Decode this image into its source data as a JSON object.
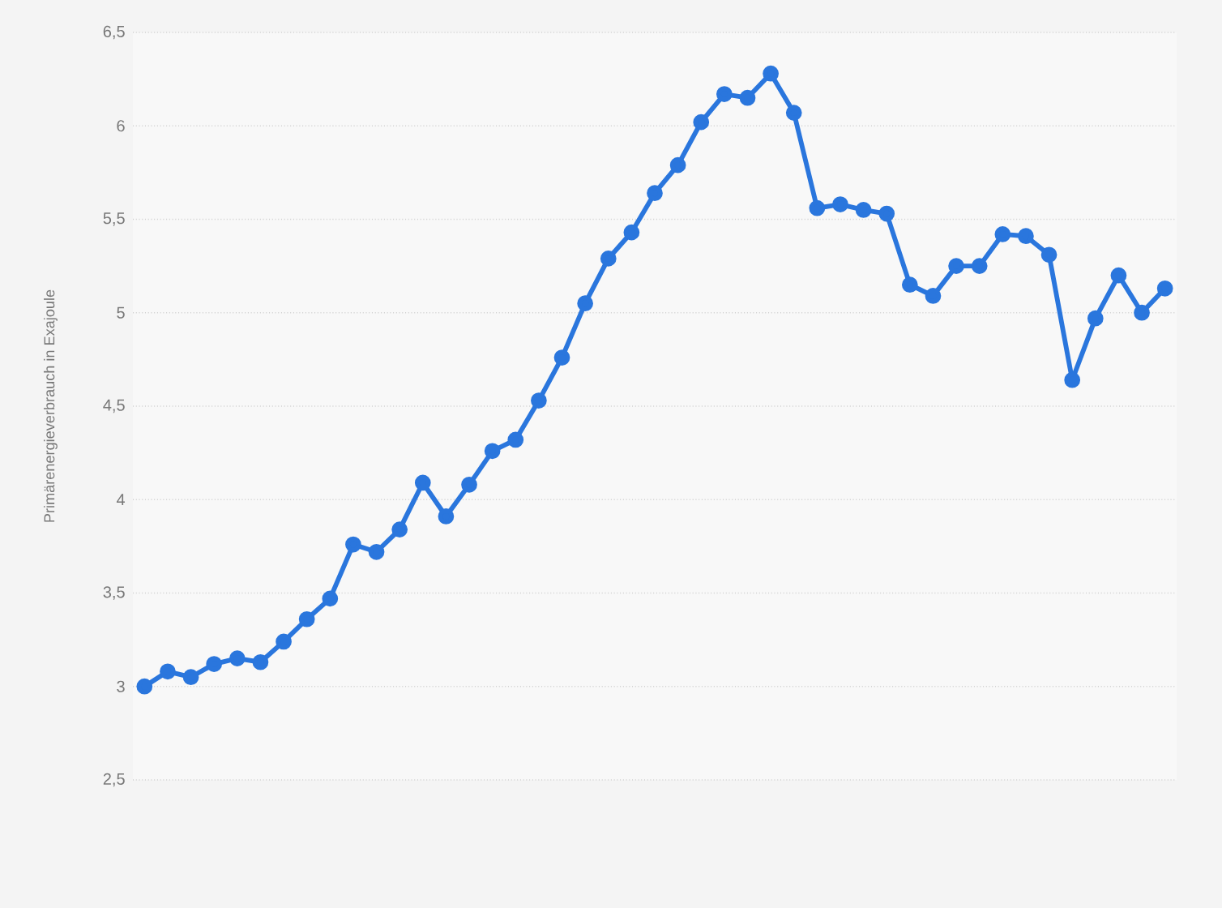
{
  "chart_data": {
    "type": "line",
    "ylabel": "Primärenergieverbrauch in Exajoule",
    "categories": [
      null,
      null,
      null,
      null,
      null,
      null,
      null,
      null,
      null,
      null,
      null,
      null,
      null,
      null,
      null,
      null,
      null,
      null,
      null,
      null,
      null,
      null,
      null,
      null,
      null,
      null,
      null,
      null,
      null,
      null,
      null,
      null,
      null,
      null,
      null,
      null,
      null,
      null,
      null,
      null,
      null,
      null,
      null,
      null,
      null
    ],
    "series": [
      {
        "color": "#2a76dd",
        "values": [
          3.0,
          3.08,
          3.05,
          3.12,
          3.15,
          3.13,
          3.24,
          3.36,
          3.47,
          3.76,
          3.72,
          3.84,
          4.09,
          3.91,
          4.08,
          4.26,
          4.32,
          4.53,
          4.76,
          5.05,
          5.29,
          5.43,
          5.64,
          5.79,
          6.02,
          6.17,
          6.15,
          6.28,
          6.07,
          5.56,
          5.58,
          5.55,
          5.53,
          5.15,
          5.09,
          5.25,
          5.25,
          5.42,
          5.41,
          5.31,
          4.64,
          4.97,
          5.2,
          5.0,
          5.13
        ]
      }
    ],
    "ylim": [
      2.5,
      6.5
    ],
    "yticks": [
      {
        "value": 2.5,
        "label": "2,5"
      },
      {
        "value": 3,
        "label": "3"
      },
      {
        "value": 3.5,
        "label": "3,5"
      },
      {
        "value": 4,
        "label": "4"
      },
      {
        "value": 4.5,
        "label": "4,5"
      },
      {
        "value": 5,
        "label": "5"
      },
      {
        "value": 5.5,
        "label": "5,5"
      },
      {
        "value": 6,
        "label": "6"
      },
      {
        "value": 6.5,
        "label": "6,5"
      }
    ],
    "grid": "y",
    "marker": "circle",
    "line_style": "solid",
    "tick_labels": "y"
  }
}
